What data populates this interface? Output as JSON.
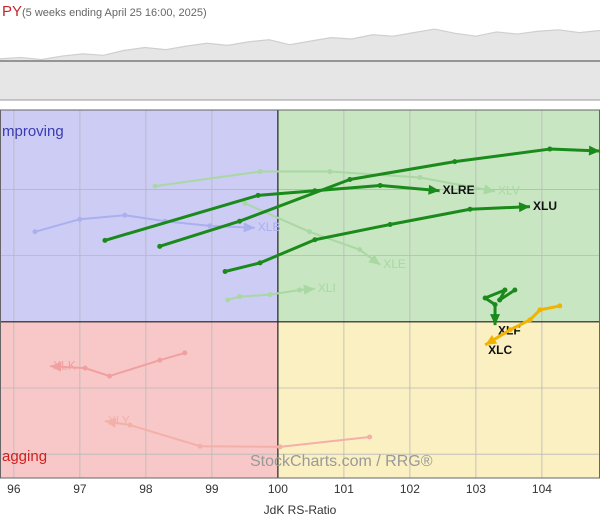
{
  "chart_data": {
    "type": "rrg",
    "title": "PY",
    "subtitle": "(5 weeks ending April 25 16:00, 2025)",
    "x_label": "JdK RS-Ratio",
    "watermark": "StockCharts.com / RRG®",
    "quadrants": [
      {
        "name": "mproving",
        "color": "#ccccf5",
        "text_color": "#3b3bb0"
      },
      {
        "name": "agging",
        "color": "#f8c8c8",
        "text_color": "#d21f1f"
      }
    ],
    "quadrant_fills": {
      "leading": "#c8e6c2",
      "weakening": "#fbf0c2"
    },
    "xlim": [
      95.79,
      104.88
    ],
    "ylim": [
      97.64,
      103.2
    ],
    "center": [
      100,
      100
    ],
    "xticks": [
      96,
      97,
      98,
      99,
      100,
      101,
      102,
      103,
      104
    ],
    "yticks": [
      98,
      99,
      100,
      101,
      102
    ],
    "grid": true,
    "price": {
      "values": [
        58,
        60,
        57,
        62,
        65,
        63,
        70,
        74,
        71,
        76,
        80,
        77,
        82,
        85,
        78,
        83,
        88,
        86,
        92,
        90,
        95,
        100,
        94,
        90,
        96,
        93,
        97,
        99,
        95,
        98
      ],
      "ylim": [
        0,
        110
      ],
      "color": "#cfcfcf",
      "baseline": 55
    },
    "series": [
      {
        "name": "XLV",
        "color": "#a9d8a3",
        "x": [
          98.14,
          99.73,
          100.79,
          102.15,
          103.29
        ],
        "y": [
          102.05,
          102.27,
          102.27,
          102.18,
          101.97
        ]
      },
      {
        "name": "XLE",
        "color": "#a9d8a3",
        "x": [
          99.5,
          100.48,
          101.24,
          101.55
        ],
        "y": [
          101.79,
          101.36,
          101.09,
          100.86
        ]
      },
      {
        "name": "XLI",
        "color": "#a9d8a3",
        "x": [
          99.24,
          99.42,
          99.88,
          100.33,
          100.56
        ],
        "y": [
          100.33,
          100.38,
          100.41,
          100.48,
          100.5
        ]
      },
      {
        "name": "XLB",
        "color": "#aab0ee",
        "x": [
          96.32,
          97.0,
          97.68,
          98.29,
          98.97,
          99.65
        ],
        "y": [
          101.36,
          101.55,
          101.61,
          101.52,
          101.45,
          101.42
        ]
      },
      {
        "name": "XLK",
        "color": "#f0a0a0",
        "x": [
          98.59,
          98.21,
          97.45,
          97.08,
          96.55
        ],
        "y": [
          99.53,
          99.42,
          99.18,
          99.3,
          99.33
        ]
      },
      {
        "name": "XLY",
        "color": "#f3b0a8",
        "x": [
          101.39,
          100.03,
          98.82,
          97.76,
          97.38
        ],
        "y": [
          98.26,
          98.11,
          98.12,
          98.44,
          98.5
        ]
      },
      {
        "color": "#1a8a1a",
        "x": [
          98.21,
          99.42,
          101.09,
          102.68,
          104.12,
          104.88
        ],
        "y": [
          101.14,
          101.52,
          102.15,
          102.42,
          102.61,
          102.58
        ]
      },
      {
        "name": "XLRE",
        "color": "#1a8a1a",
        "x": [
          97.38,
          99.7,
          100.56,
          101.55,
          102.45
        ],
        "y": [
          101.23,
          101.91,
          101.98,
          102.06,
          101.98
        ]
      },
      {
        "name": "XLU",
        "color": "#1a8a1a",
        "x": [
          99.2,
          99.73,
          100.56,
          101.7,
          102.91,
          103.82
        ],
        "y": [
          100.76,
          100.89,
          101.24,
          101.47,
          101.7,
          101.74
        ]
      },
      {
        "name": "XLF",
        "color": "#1a8a1a",
        "x": [
          103.59,
          103.36,
          103.44,
          103.14,
          103.29,
          103.29
        ],
        "y": [
          100.48,
          100.33,
          100.48,
          100.36,
          100.26,
          99.95
        ]
      },
      {
        "name": "XLC",
        "color": "#f0b400",
        "x": [
          104.27,
          103.97,
          103.82,
          103.52,
          103.14
        ],
        "y": [
          100.24,
          100.18,
          100.03,
          99.88,
          99.65
        ]
      }
    ]
  }
}
